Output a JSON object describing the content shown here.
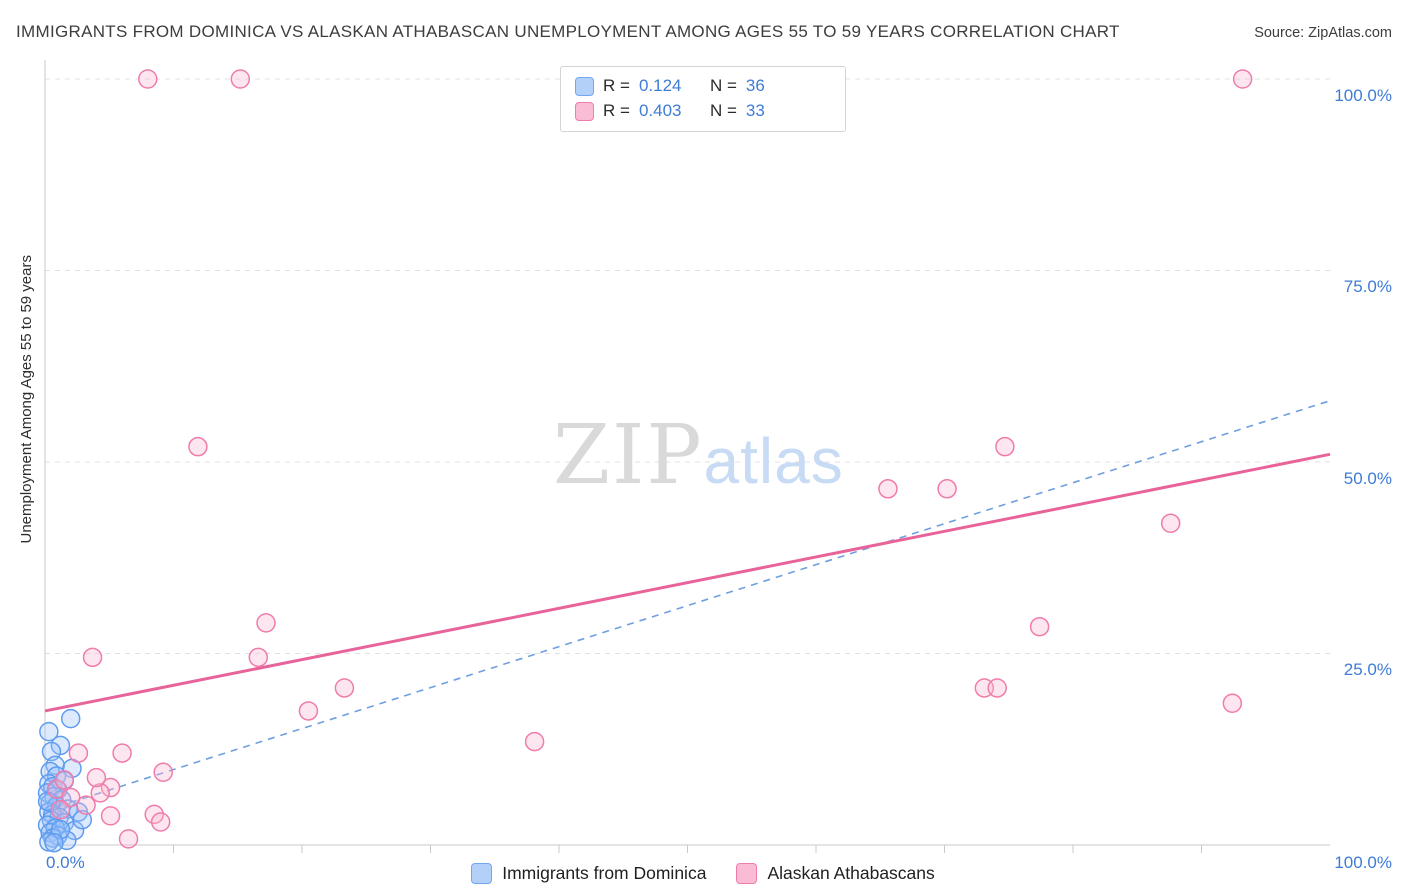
{
  "title": "IMMIGRANTS FROM DOMINICA VS ALASKAN ATHABASCAN UNEMPLOYMENT AMONG AGES 55 TO 59 YEARS CORRELATION CHART",
  "source": "Source: ZipAtlas.com",
  "ylabel": "Unemployment Among Ages 55 to 59 years",
  "watermark": {
    "part1": "ZIP",
    "part2": "atlas"
  },
  "axis": {
    "y_tick_labels": [
      "100.0%",
      "75.0%",
      "50.0%",
      "25.0%"
    ],
    "x_min_label": "0.0%",
    "x_max_label": "100.0%"
  },
  "legend_box": {
    "rows": [
      {
        "series": "Immigrants from Dominica",
        "r_label": "R =",
        "r_value": "0.124",
        "n_label": "N =",
        "n_value": "36"
      },
      {
        "series": "Alaskan Athabascans",
        "r_label": "R =",
        "r_value": "0.403",
        "n_label": "N =",
        "n_value": "33"
      }
    ]
  },
  "bottom_legend": {
    "items": [
      {
        "label": "Immigrants from Dominica",
        "color": "blue"
      },
      {
        "label": "Alaskan Athabascans",
        "color": "pink"
      }
    ]
  },
  "colors": {
    "blue_fill": "#9ec3f8",
    "blue_stroke": "#5f9cf0",
    "pink_fill": "#f8b8d0",
    "pink_stroke": "#ef7cab",
    "pink_trend": "#e8639a",
    "blue_trend": "#6f9fe0",
    "grid": "#e0e0e0",
    "axis": "#c9c9c9",
    "tick_label_blue": "#3e7cd6"
  },
  "chart_data": {
    "type": "scatter",
    "title": "IMMIGRANTS FROM DOMINICA VS ALASKAN ATHABASCAN UNEMPLOYMENT AMONG AGES 55 TO 59 YEARS CORRELATION CHART",
    "xlabel": "Immigrants from Dominica (%)",
    "ylabel": "Unemployment Among Ages 55 to 59 years",
    "xlim": [
      0,
      100
    ],
    "ylim": [
      0,
      105
    ],
    "grid": "horizontal-dashed",
    "gridline_values": [
      25,
      50,
      75,
      100
    ],
    "legend_position": "bottom-center",
    "series": [
      {
        "name": "Immigrants from Dominica",
        "R": 0.124,
        "N": 36,
        "points": [
          [
            0.3,
            14.8
          ],
          [
            2.0,
            16.5
          ],
          [
            1.2,
            13.0
          ],
          [
            0.5,
            12.2
          ],
          [
            0.8,
            10.4
          ],
          [
            2.1,
            10.0
          ],
          [
            0.4,
            9.6
          ],
          [
            0.9,
            9.0
          ],
          [
            1.5,
            8.4
          ],
          [
            0.3,
            8.0
          ],
          [
            0.6,
            7.6
          ],
          [
            1.0,
            7.2
          ],
          [
            0.2,
            6.8
          ],
          [
            0.7,
            6.3
          ],
          [
            1.3,
            5.9
          ],
          [
            0.4,
            5.5
          ],
          [
            0.9,
            5.1
          ],
          [
            1.8,
            4.7
          ],
          [
            0.3,
            4.3
          ],
          [
            0.6,
            4.0
          ],
          [
            2.6,
            4.3
          ],
          [
            1.1,
            3.6
          ],
          [
            0.5,
            3.2
          ],
          [
            1.5,
            2.9
          ],
          [
            0.2,
            2.6
          ],
          [
            0.8,
            2.2
          ],
          [
            2.3,
            1.9
          ],
          [
            0.4,
            1.6
          ],
          [
            1.0,
            1.2
          ],
          [
            0.6,
            0.9
          ],
          [
            1.7,
            0.6
          ],
          [
            0.3,
            0.4
          ],
          [
            2.9,
            3.3
          ],
          [
            0.2,
            5.7
          ],
          [
            1.2,
            2.0
          ],
          [
            0.7,
            0.3
          ]
        ]
      },
      {
        "name": "Alaskan Athabascans",
        "R": 0.403,
        "N": 33,
        "points": [
          [
            8.0,
            100
          ],
          [
            15.2,
            100
          ],
          [
            93.2,
            100
          ],
          [
            11.9,
            52
          ],
          [
            74.7,
            52
          ],
          [
            65.6,
            46.5
          ],
          [
            70.2,
            46.5
          ],
          [
            87.6,
            42
          ],
          [
            77.4,
            28.5
          ],
          [
            17.2,
            29
          ],
          [
            3.7,
            24.5
          ],
          [
            16.6,
            24.5
          ],
          [
            23.3,
            20.5
          ],
          [
            20.5,
            17.5
          ],
          [
            38.1,
            13.5
          ],
          [
            73.1,
            20.5
          ],
          [
            74.1,
            20.5
          ],
          [
            92.4,
            18.5
          ],
          [
            6.0,
            12
          ],
          [
            2.6,
            12
          ],
          [
            9.2,
            9.5
          ],
          [
            5.1,
            7.5
          ],
          [
            0.9,
            7.3
          ],
          [
            4.3,
            6.8
          ],
          [
            1.5,
            8.5
          ],
          [
            8.5,
            4.0
          ],
          [
            5.1,
            3.8
          ],
          [
            9.0,
            3.0
          ],
          [
            6.5,
            0.8
          ],
          [
            4.0,
            8.8
          ],
          [
            2.0,
            6.2
          ],
          [
            3.2,
            5.2
          ],
          [
            1.2,
            4.6
          ]
        ]
      }
    ],
    "trend_lines": [
      {
        "series": "Immigrants from Dominica",
        "style": "dashed",
        "x1": 0,
        "y1": 4.5,
        "x2": 100,
        "y2": 58
      },
      {
        "series": "Alaskan Athabascans",
        "style": "solid",
        "x1": 0,
        "y1": 17.5,
        "x2": 100,
        "y2": 51
      }
    ]
  }
}
